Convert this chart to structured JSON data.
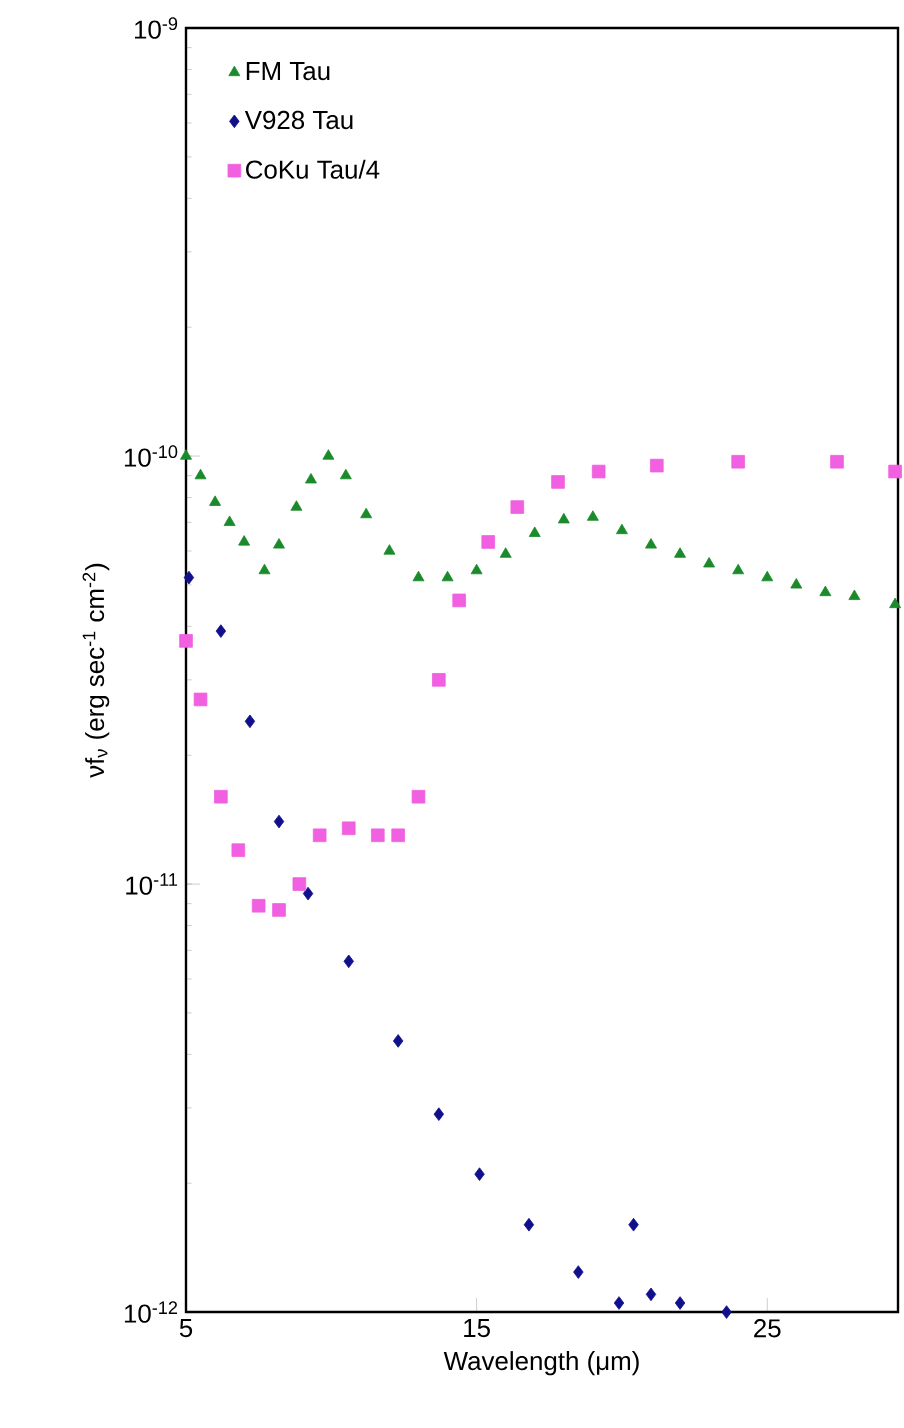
{
  "chart_data": {
    "type": "scatter",
    "xlabel": "Wavelength (μm)",
    "ylabel": "νf$_{ν}$ (erg sec$^{-1}$ cm$^{-2}$)",
    "log": "y",
    "legend": "top left",
    "grid": false,
    "xlim": [
      5,
      29.5
    ],
    "ylim": [
      1e-12,
      1e-09
    ],
    "xticks": [
      5,
      15,
      25
    ],
    "yticks": [
      {
        "value": 1e-12,
        "label": "10$^{-12}$"
      },
      {
        "value": 1e-11,
        "label": "10$^{-11}$"
      },
      {
        "value": 1e-10,
        "label": "10$^{-10}$"
      },
      {
        "value": 1e-09,
        "label": "10$^{-9}$"
      }
    ],
    "series": [
      {
        "name": "FM Tau",
        "color": "#1a8a2a",
        "marker": "triangle",
        "x": [
          5.0,
          5.5,
          6.0,
          6.5,
          7.0,
          7.7,
          8.2,
          8.8,
          9.3,
          9.9,
          10.5,
          11.2,
          12,
          13,
          14,
          15,
          16,
          17,
          18,
          19,
          20,
          21,
          22,
          23,
          24,
          25,
          26,
          27,
          28,
          29.4
        ],
        "values": [
          1e-10,
          9e-11,
          7.8e-11,
          7e-11,
          6.3e-11,
          5.4e-11,
          6.2e-11,
          7.6e-11,
          8.8e-11,
          1e-10,
          9e-11,
          7.3e-11,
          6e-11,
          5.2e-11,
          5.2e-11,
          5.4e-11,
          5.9e-11,
          6.6e-11,
          7.1e-11,
          7.2e-11,
          6.7e-11,
          6.2e-11,
          5.9e-11,
          5.6e-11,
          5.4e-11,
          5.2e-11,
          5e-11,
          4.8e-11,
          4.7e-11,
          4.5e-11
        ]
      },
      {
        "name": "V928 Tau",
        "color": "#10108c",
        "marker": "diamond",
        "x": [
          5.1,
          6.2,
          7.2,
          8.2,
          9.2,
          10.6,
          12.3,
          13.7,
          15.1,
          16.8,
          18.5,
          19.9,
          20.4,
          21.0,
          22.0,
          23.6
        ],
        "values": [
          5.2e-11,
          3.9e-11,
          2.4e-11,
          1.4e-11,
          9.5e-12,
          6.6e-12,
          4.3e-12,
          2.9e-12,
          2.1e-12,
          1.6e-12,
          1.24e-12,
          1.05e-12,
          1.6e-12,
          1.1e-12,
          1.05e-12,
          1e-12
        ]
      },
      {
        "name": "CoKu Tau/4",
        "color": "#f060e0",
        "marker": "square",
        "x": [
          5.0,
          5.5,
          6.2,
          6.8,
          7.5,
          8.2,
          8.9,
          9.6,
          10.6,
          11.6,
          12.3,
          13.0,
          13.7,
          14.4,
          15.4,
          16.4,
          17.8,
          19.2,
          21.2,
          24.0,
          27.4,
          29.4
        ],
        "values": [
          3.7e-11,
          2.7e-11,
          1.6e-11,
          1.2e-11,
          8.9e-12,
          8.7e-12,
          1e-11,
          1.3e-11,
          1.35e-11,
          1.3e-11,
          1.3e-11,
          1.6e-11,
          3e-11,
          4.6e-11,
          6.3e-11,
          7.6e-11,
          8.7e-11,
          9.2e-11,
          9.5e-11,
          9.7e-11,
          9.7e-11,
          9.2e-11
        ]
      }
    ]
  }
}
